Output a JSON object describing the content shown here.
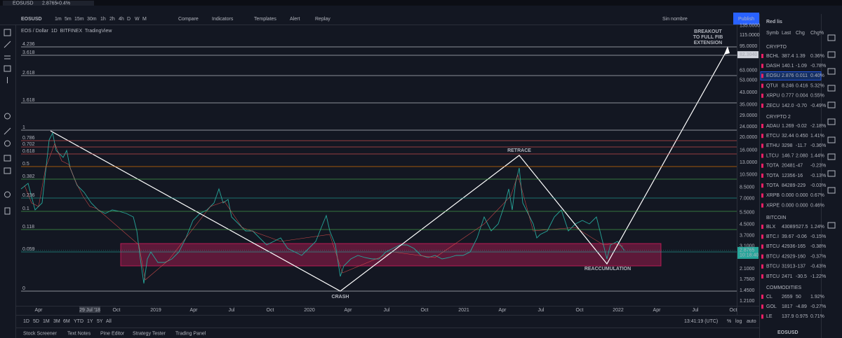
{
  "top_bar": {
    "symbol": "EOSUSD",
    "price": "2.8765",
    "change": "+0.4%",
    "intervals": [
      "1m",
      "5m",
      "15m",
      "30m",
      "1h",
      "2h",
      "4h",
      "D",
      "W",
      "M"
    ],
    "buttons": [
      "Compare",
      "Indicators",
      "Templates",
      "Alert",
      "Replay"
    ],
    "layout_name": "Sin nombre",
    "publish": "Publish"
  },
  "chart": {
    "header": "EOS / Dollar  1D  BITFINEX  TradingView",
    "fib_levels": [
      "4.236",
      "3.618",
      "2.618",
      "1.618",
      "1",
      "0.786",
      "0.702",
      "0.618",
      "0.5",
      "0.382",
      "0.236",
      "0.1",
      "0.118",
      "0.059",
      "0"
    ],
    "annotations": {
      "breakout": [
        "BREAKOUT",
        "TO FULL FIB",
        "EXTENSION"
      ],
      "retrace": "RETRACE",
      "crash": "CRASH",
      "reaccumulation": "REACCUMULATION"
    },
    "price_axis": [
      "135.0000",
      "115.0000",
      "95.0000",
      "63.0000",
      "53.0000",
      "43.0000",
      "35.0000",
      "29.0000",
      "24.0000",
      "20.0000",
      "16.0000",
      "13.0000",
      "10.5000",
      "8.5000",
      "7.0000",
      "5.5000",
      "4.5000",
      "3.7000",
      "3.1000",
      "2.1000",
      "1.7500",
      "1.4500",
      "1.2100"
    ],
    "highlight_price": "82.3040",
    "last_price": "2.8765",
    "countdown": "10:18:40",
    "time_axis": [
      "Apr",
      "29 Jul '18",
      "Oct",
      "2019",
      "Apr",
      "Jul",
      "Oct",
      "2020",
      "Apr",
      "Jul",
      "Oct",
      "2021",
      "Apr",
      "Jul",
      "Oct",
      "2022",
      "Apr",
      "Jul",
      "Oct"
    ]
  },
  "bottom_bar": {
    "ranges": [
      "1D",
      "5D",
      "1M",
      "3M",
      "6M",
      "YTD",
      "1Y",
      "5Y",
      "All"
    ],
    "clock": "13:41:19 (UTC)",
    "options": [
      "%",
      "log",
      "auto"
    ]
  },
  "tabs": [
    "Stock Screener",
    "Text Notes",
    "Pine Editor",
    "Strategy Tester",
    "Trading Panel"
  ],
  "watchlist": {
    "title": "Red lis",
    "columns": [
      "Symb",
      "Last",
      "Chg",
      "Chg%"
    ],
    "sections": [
      {
        "name": "CRYPTO",
        "rows": [
          [
            "BCHL",
            "387.4",
            "1.39",
            "0.36%"
          ],
          [
            "DASH",
            "140.1",
            "-1.09",
            "-0.78%"
          ],
          [
            "EOSU",
            "2.876",
            "0.011",
            "0.40%"
          ],
          [
            "QTUI",
            "8.246",
            "0.416",
            "5.32%"
          ],
          [
            "XRPU",
            "0.777",
            "0.004",
            "0.55%"
          ],
          [
            "ZECU",
            "142.0",
            "-0.70",
            "-0.49%"
          ]
        ]
      },
      {
        "name": "CRYPTO 2",
        "rows": [
          [
            "ADAU",
            "1.269",
            "-0.02",
            "-2.18%"
          ],
          [
            "ETCU",
            "32.44",
            "0.450",
            "1.41%"
          ],
          [
            "ETHU",
            "3298",
            "-11.7",
            "-0.36%"
          ],
          [
            "LTCU",
            "146.7",
            "2.080",
            "1.44%"
          ],
          [
            "TOTA",
            "20481",
            "-47",
            "-0.23%"
          ],
          [
            "TOTA",
            "12356",
            "-16",
            "-0.13%"
          ],
          [
            "TOTA",
            "84289",
            "-229",
            "-0.03%"
          ],
          [
            "XRPB",
            "0.000",
            "0.000",
            "0.67%"
          ],
          [
            "XRPE",
            "0.000",
            "0.000",
            "0.46%"
          ]
        ]
      },
      {
        "name": "BITCOIN",
        "rows": [
          [
            "BLX",
            "43089",
            "527.5",
            "1.24%"
          ],
          [
            "BTC.I",
            "39.67",
            "-0.06",
            "-0.15%"
          ],
          [
            "BTCU",
            "42936",
            "-165",
            "-0.38%"
          ],
          [
            "BTCU",
            "42929",
            "-160",
            "-0.37%"
          ],
          [
            "BTCU",
            "31913",
            "-137",
            "-0.43%"
          ],
          [
            "BTCU",
            "2471",
            "-30.5",
            "-1.22%"
          ]
        ]
      },
      {
        "name": "COMMODITIES",
        "rows": [
          [
            "CL",
            "2659",
            "50",
            "1.92%"
          ],
          [
            "GOL",
            "1817",
            "-4.89",
            "-0.27%"
          ],
          [
            "LE",
            "137.9",
            "0.975",
            "0.71%"
          ]
        ]
      }
    ],
    "footer": "EOSUSD"
  }
}
